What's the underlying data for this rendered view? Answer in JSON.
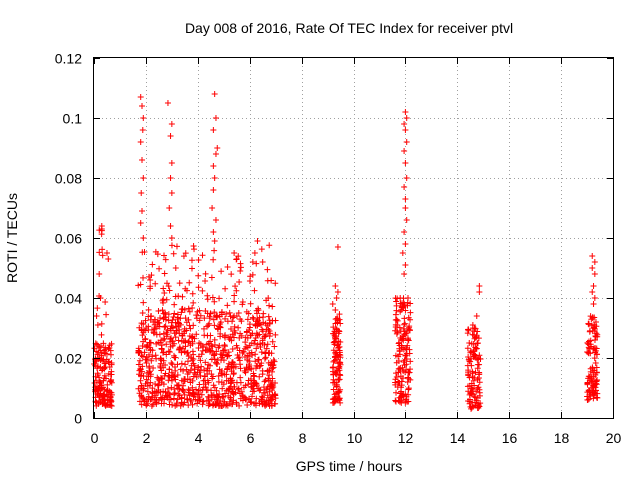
{
  "chart_data": {
    "type": "scatter",
    "title": "Day 008 of 2016, Rate Of TEC Index for receiver ptvl",
    "xlabel": "GPS time / hours",
    "ylabel": "ROTI / TECUs",
    "xlim": [
      0,
      20
    ],
    "ylim": [
      0,
      0.12
    ],
    "grid": true,
    "marker": "+",
    "color": "#ff0000",
    "xticks": [
      0,
      2,
      4,
      6,
      8,
      10,
      12,
      14,
      16,
      18,
      20
    ],
    "xtick_labels": [
      "0",
      "2",
      "4",
      "6",
      "8",
      "10",
      "12",
      "14",
      "16",
      "18",
      "20"
    ],
    "yticks": [
      0,
      0.02,
      0.04,
      0.06,
      0.08,
      0.1,
      0.12
    ],
    "ytick_labels": [
      "0",
      "0.02",
      "0.04",
      "0.06",
      "0.08",
      "0.1",
      "0.12"
    ],
    "clusters": [
      {
        "x_range": [
          0.0,
          0.7
        ],
        "y_range": [
          0.004,
          0.025
        ],
        "count": 150
      },
      {
        "x_range": [
          0.1,
          0.5
        ],
        "y_range": [
          0.025,
          0.064
        ],
        "count": 12
      },
      {
        "x_range": [
          1.7,
          7.0
        ],
        "y_range": [
          0.004,
          0.035
        ],
        "count": 900
      },
      {
        "x_range": [
          1.7,
          7.0
        ],
        "y_range": [
          0.035,
          0.058
        ],
        "count": 120
      }
    ],
    "series": [
      {
        "name": "ROTI",
        "points": [
          [
            0.3,
            0.064
          ],
          [
            0.3,
            0.063
          ],
          [
            0.1,
            0.034
          ],
          [
            0.15,
            0.031
          ],
          [
            0.25,
            0.04
          ],
          [
            0.5,
            0.055
          ],
          [
            0.55,
            0.053
          ],
          [
            0.2,
            0.048
          ],
          [
            1.8,
            0.107
          ],
          [
            1.85,
            0.104
          ],
          [
            1.9,
            0.1
          ],
          [
            1.88,
            0.096
          ],
          [
            1.8,
            0.092
          ],
          [
            1.85,
            0.086
          ],
          [
            1.9,
            0.08
          ],
          [
            1.82,
            0.075
          ],
          [
            1.85,
            0.069
          ],
          [
            1.8,
            0.065
          ],
          [
            1.9,
            0.06
          ],
          [
            2.85,
            0.105
          ],
          [
            3.0,
            0.098
          ],
          [
            2.95,
            0.094
          ],
          [
            3.0,
            0.085
          ],
          [
            2.95,
            0.08
          ],
          [
            3.0,
            0.075
          ],
          [
            2.9,
            0.07
          ],
          [
            2.95,
            0.064
          ],
          [
            3.0,
            0.06
          ],
          [
            4.65,
            0.108
          ],
          [
            4.7,
            0.1
          ],
          [
            4.6,
            0.096
          ],
          [
            4.75,
            0.09
          ],
          [
            4.7,
            0.088
          ],
          [
            4.6,
            0.084
          ],
          [
            4.65,
            0.08
          ],
          [
            4.6,
            0.076
          ],
          [
            4.55,
            0.07
          ],
          [
            4.7,
            0.066
          ],
          [
            4.6,
            0.062
          ],
          [
            4.65,
            0.059
          ],
          [
            6.3,
            0.059
          ],
          [
            6.2,
            0.055
          ],
          [
            5.4,
            0.055
          ],
          [
            5.5,
            0.053
          ],
          [
            6.5,
            0.052
          ],
          [
            9.4,
            0.057
          ],
          [
            9.3,
            0.044
          ],
          [
            9.4,
            0.042
          ],
          [
            9.35,
            0.04
          ],
          [
            9.2,
            0.038
          ],
          [
            9.3,
            0.036
          ],
          [
            12.0,
            0.102
          ],
          [
            12.05,
            0.1
          ],
          [
            11.95,
            0.098
          ],
          [
            12.0,
            0.096
          ],
          [
            12.05,
            0.092
          ],
          [
            11.95,
            0.089
          ],
          [
            12.0,
            0.085
          ],
          [
            12.05,
            0.08
          ],
          [
            11.95,
            0.077
          ],
          [
            12.0,
            0.073
          ],
          [
            12.0,
            0.07
          ],
          [
            12.05,
            0.066
          ],
          [
            11.95,
            0.062
          ],
          [
            12.0,
            0.058
          ],
          [
            11.9,
            0.055
          ],
          [
            12.0,
            0.051
          ],
          [
            11.95,
            0.048
          ],
          [
            11.8,
            0.04
          ],
          [
            12.1,
            0.04
          ],
          [
            14.85,
            0.044
          ],
          [
            14.85,
            0.042
          ],
          [
            14.75,
            0.034
          ],
          [
            14.6,
            0.031
          ],
          [
            19.2,
            0.054
          ],
          [
            19.3,
            0.052
          ],
          [
            19.2,
            0.05
          ],
          [
            19.3,
            0.048
          ],
          [
            19.25,
            0.044
          ],
          [
            19.2,
            0.042
          ],
          [
            19.3,
            0.04
          ],
          [
            19.25,
            0.038
          ]
        ]
      }
    ]
  }
}
